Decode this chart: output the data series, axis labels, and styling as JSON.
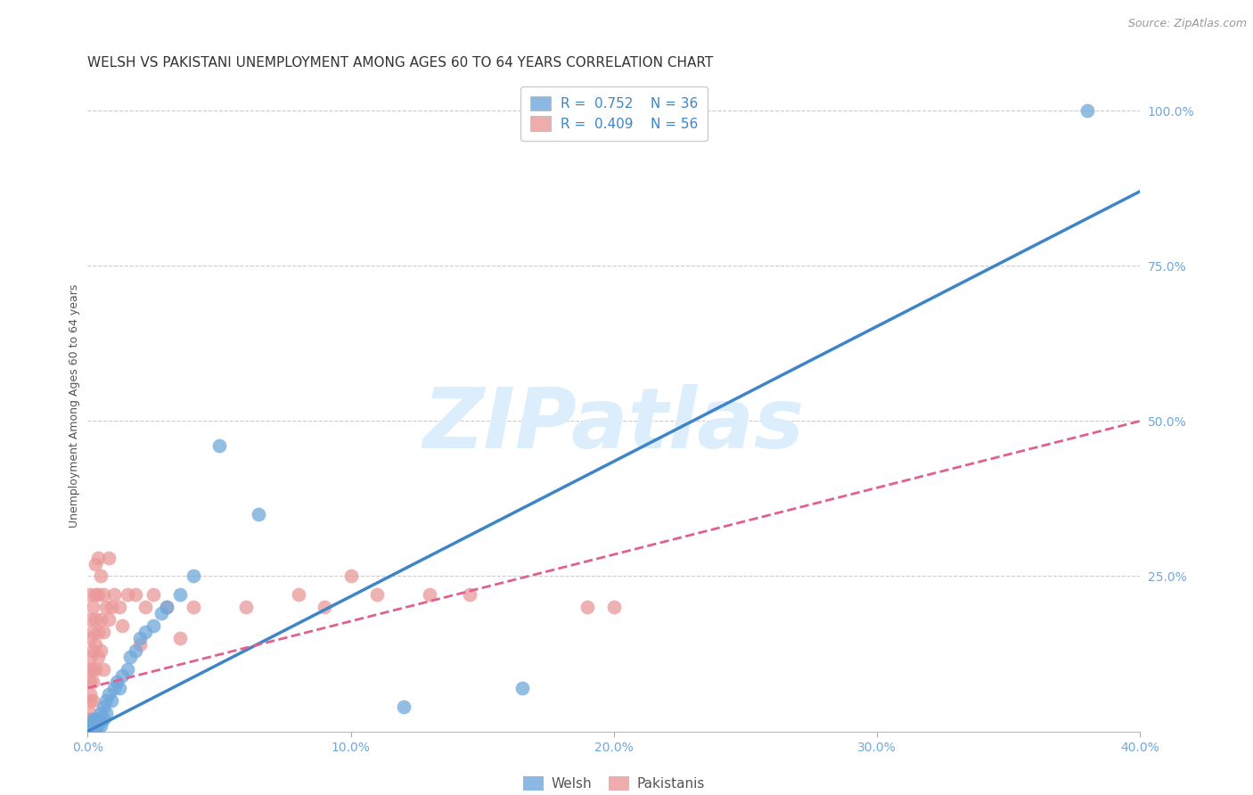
{
  "title": "WELSH VS PAKISTANI UNEMPLOYMENT AMONG AGES 60 TO 64 YEARS CORRELATION CHART",
  "source": "Source: ZipAtlas.com",
  "ylabel": "Unemployment Among Ages 60 to 64 years",
  "xlim": [
    0.0,
    0.4
  ],
  "ylim": [
    0.0,
    1.05
  ],
  "xtick_labels": [
    "0.0%",
    "10.0%",
    "20.0%",
    "30.0%",
    "40.0%"
  ],
  "xtick_values": [
    0.0,
    0.1,
    0.2,
    0.3,
    0.4
  ],
  "ytick_labels": [
    "100.0%",
    "75.0%",
    "50.0%",
    "25.0%"
  ],
  "ytick_values": [
    1.0,
    0.75,
    0.5,
    0.25
  ],
  "welsh_color": "#6fa8dc",
  "pakistani_color": "#ea9999",
  "welsh_line_color": "#3d85c8",
  "pakistani_line_color": "#e06090",
  "watermark_color": "#dceefb",
  "legend_R_welsh": "0.752",
  "legend_N_welsh": "36",
  "legend_R_pakistani": "0.409",
  "legend_N_pakistani": "56",
  "welsh_line": [
    [
      0.0,
      0.0
    ],
    [
      0.4,
      0.87
    ]
  ],
  "pakistani_line": [
    [
      0.0,
      0.07
    ],
    [
      0.4,
      0.5
    ]
  ],
  "welsh_scatter": [
    [
      0.001,
      0.01
    ],
    [
      0.001,
      0.005
    ],
    [
      0.002,
      0.02
    ],
    [
      0.002,
      0.01
    ],
    [
      0.003,
      0.01
    ],
    [
      0.003,
      0.02
    ],
    [
      0.003,
      0.005
    ],
    [
      0.004,
      0.02
    ],
    [
      0.004,
      0.01
    ],
    [
      0.005,
      0.03
    ],
    [
      0.005,
      0.01
    ],
    [
      0.006,
      0.04
    ],
    [
      0.006,
      0.02
    ],
    [
      0.007,
      0.05
    ],
    [
      0.007,
      0.03
    ],
    [
      0.008,
      0.06
    ],
    [
      0.009,
      0.05
    ],
    [
      0.01,
      0.07
    ],
    [
      0.011,
      0.08
    ],
    [
      0.012,
      0.07
    ],
    [
      0.013,
      0.09
    ],
    [
      0.015,
      0.1
    ],
    [
      0.016,
      0.12
    ],
    [
      0.018,
      0.13
    ],
    [
      0.02,
      0.15
    ],
    [
      0.022,
      0.16
    ],
    [
      0.025,
      0.17
    ],
    [
      0.028,
      0.19
    ],
    [
      0.03,
      0.2
    ],
    [
      0.035,
      0.22
    ],
    [
      0.04,
      0.25
    ],
    [
      0.05,
      0.46
    ],
    [
      0.065,
      0.35
    ],
    [
      0.12,
      0.04
    ],
    [
      0.165,
      0.07
    ],
    [
      0.38,
      1.0
    ]
  ],
  "pakistani_scatter": [
    [
      0.001,
      0.22
    ],
    [
      0.001,
      0.18
    ],
    [
      0.001,
      0.15
    ],
    [
      0.001,
      0.12
    ],
    [
      0.001,
      0.1
    ],
    [
      0.001,
      0.08
    ],
    [
      0.001,
      0.06
    ],
    [
      0.001,
      0.05
    ],
    [
      0.001,
      0.03
    ],
    [
      0.001,
      0.02
    ],
    [
      0.001,
      0.01
    ],
    [
      0.002,
      0.2
    ],
    [
      0.002,
      0.16
    ],
    [
      0.002,
      0.13
    ],
    [
      0.002,
      0.1
    ],
    [
      0.002,
      0.08
    ],
    [
      0.002,
      0.05
    ],
    [
      0.003,
      0.27
    ],
    [
      0.003,
      0.22
    ],
    [
      0.003,
      0.18
    ],
    [
      0.003,
      0.14
    ],
    [
      0.003,
      0.1
    ],
    [
      0.004,
      0.28
    ],
    [
      0.004,
      0.22
    ],
    [
      0.004,
      0.16
    ],
    [
      0.004,
      0.12
    ],
    [
      0.005,
      0.25
    ],
    [
      0.005,
      0.18
    ],
    [
      0.005,
      0.13
    ],
    [
      0.006,
      0.22
    ],
    [
      0.006,
      0.16
    ],
    [
      0.006,
      0.1
    ],
    [
      0.007,
      0.2
    ],
    [
      0.008,
      0.28
    ],
    [
      0.008,
      0.18
    ],
    [
      0.009,
      0.2
    ],
    [
      0.01,
      0.22
    ],
    [
      0.012,
      0.2
    ],
    [
      0.013,
      0.17
    ],
    [
      0.015,
      0.22
    ],
    [
      0.018,
      0.22
    ],
    [
      0.02,
      0.14
    ],
    [
      0.022,
      0.2
    ],
    [
      0.025,
      0.22
    ],
    [
      0.03,
      0.2
    ],
    [
      0.035,
      0.15
    ],
    [
      0.04,
      0.2
    ],
    [
      0.06,
      0.2
    ],
    [
      0.08,
      0.22
    ],
    [
      0.09,
      0.2
    ],
    [
      0.1,
      0.25
    ],
    [
      0.11,
      0.22
    ],
    [
      0.13,
      0.22
    ],
    [
      0.145,
      0.22
    ],
    [
      0.19,
      0.2
    ],
    [
      0.2,
      0.2
    ]
  ],
  "background_color": "#ffffff",
  "grid_color": "#cccccc",
  "axis_label_color": "#6fa8dc",
  "title_color": "#333333",
  "title_fontsize": 11,
  "ylabel_fontsize": 9,
  "tick_fontsize": 10,
  "legend_fontsize": 11
}
